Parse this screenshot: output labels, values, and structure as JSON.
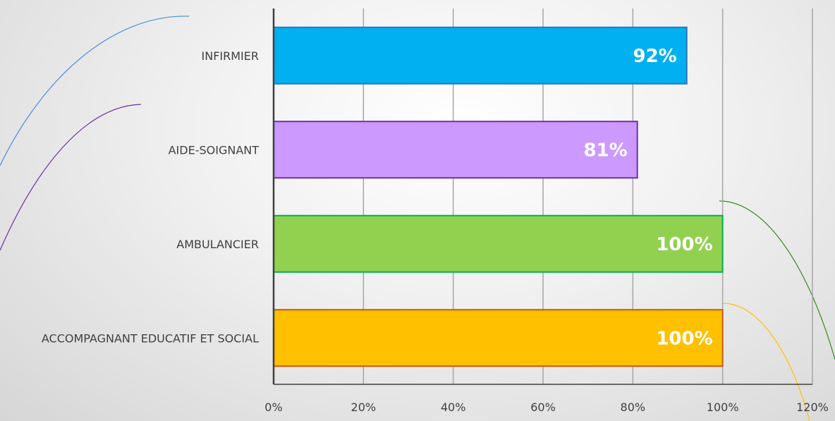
{
  "chart_data": {
    "type": "bar",
    "orientation": "horizontal",
    "categories": [
      "INFIRMIER",
      "AIDE-SOIGNANT",
      "AMBULANCIER",
      "ACCOMPAGNANT EDUCATIF ET SOCIAL"
    ],
    "values": [
      92,
      81,
      100,
      100
    ],
    "data_labels": [
      "92%",
      "81%",
      "100%",
      "100%"
    ],
    "bar_colors": [
      "#00B0F0",
      "#CC99FF",
      "#92D050",
      "#FFC000"
    ],
    "bar_border_colors": [
      "#2E75B6",
      "#7030A0",
      "#00B050",
      "#C55A11"
    ],
    "xlim": [
      0,
      120
    ],
    "xticks": [
      0,
      20,
      40,
      60,
      80,
      100,
      120
    ],
    "xtick_labels": [
      "0%",
      "20%",
      "40%",
      "60%",
      "80%",
      "100%",
      "120%"
    ],
    "title": "",
    "xlabel": "",
    "ylabel": "",
    "grid": "vertical",
    "legend": "none",
    "colors": {
      "gridline": "#a6a6a6",
      "axis": "#404040",
      "label_text": "#404040",
      "data_label_text": "#ffffff"
    }
  }
}
